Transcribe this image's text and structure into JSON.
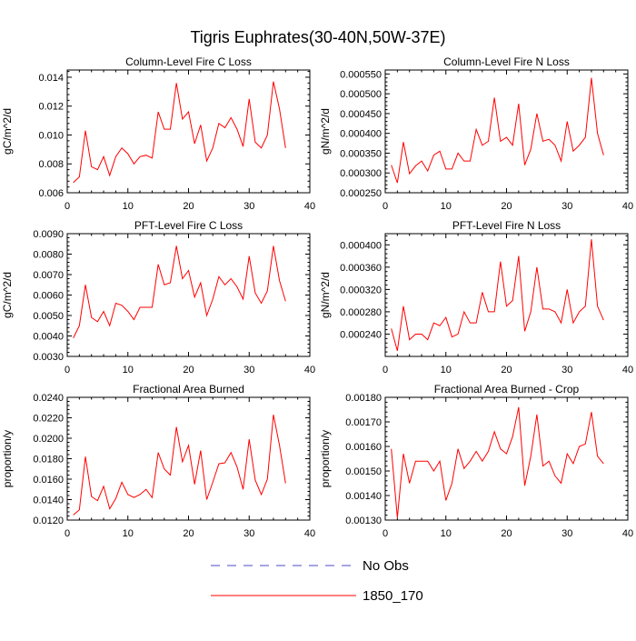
{
  "title": "Tigris Euphrates(30-40N,50W-37E)",
  "legend": [
    {
      "label": "No Obs",
      "style": "dashed",
      "color": "#4b4bc8"
    },
    {
      "label": "1850_170",
      "style": "solid",
      "color": "#ff0000"
    }
  ],
  "chart_data": [
    {
      "type": "line",
      "title": "Column-Level Fire C Loss",
      "ylabel": "gC/m^2/d",
      "xlim": [
        0,
        40
      ],
      "ylim": [
        0.006,
        0.0145
      ],
      "xticks": [
        0,
        10,
        20,
        30,
        40
      ],
      "xtick_labels": [
        "0",
        "10",
        "20",
        "30",
        "40"
      ],
      "yticks": [
        0.006,
        0.008,
        0.01,
        0.012,
        0.014
      ],
      "ytick_labels": [
        "0.006",
        "0.008",
        "0.010",
        "0.012",
        "0.014"
      ],
      "x": [
        1,
        2,
        3,
        4,
        5,
        6,
        7,
        8,
        9,
        10,
        11,
        12,
        13,
        14,
        15,
        16,
        17,
        18,
        19,
        20,
        21,
        22,
        23,
        24,
        25,
        26,
        27,
        28,
        29,
        30,
        31,
        32,
        33,
        34,
        35,
        36
      ],
      "series": [
        {
          "name": "1850_170",
          "color": "#ff0000",
          "values": [
            0.0067,
            0.0071,
            0.0103,
            0.0078,
            0.0076,
            0.0085,
            0.0072,
            0.0085,
            0.0091,
            0.0087,
            0.008,
            0.0085,
            0.0086,
            0.0084,
            0.0116,
            0.0104,
            0.0104,
            0.0136,
            0.0111,
            0.0116,
            0.0094,
            0.0107,
            0.0082,
            0.0091,
            0.0108,
            0.0105,
            0.0112,
            0.0104,
            0.0092,
            0.0125,
            0.0095,
            0.0091,
            0.01,
            0.0137,
            0.0118,
            0.0091
          ]
        }
      ]
    },
    {
      "type": "line",
      "title": "Column-Level Fire N Loss",
      "ylabel": "gN/m^2/d",
      "xlim": [
        0,
        40
      ],
      "ylim": [
        0.00025,
        0.00056
      ],
      "xticks": [
        0,
        10,
        20,
        30,
        40
      ],
      "xtick_labels": [
        "0",
        "10",
        "20",
        "30",
        "40"
      ],
      "yticks": [
        0.00025,
        0.0003,
        0.00035,
        0.0004,
        0.00045,
        0.0005,
        0.00055
      ],
      "ytick_labels": [
        "0.000250",
        "0.000300",
        "0.000350",
        "0.000400",
        "0.000450",
        "0.000500",
        "0.000550"
      ],
      "x": [
        1,
        2,
        3,
        4,
        5,
        6,
        7,
        8,
        9,
        10,
        11,
        12,
        13,
        14,
        15,
        16,
        17,
        18,
        19,
        20,
        21,
        22,
        23,
        24,
        25,
        26,
        27,
        28,
        29,
        30,
        31,
        32,
        33,
        34,
        35,
        36
      ],
      "series": [
        {
          "name": "1850_170",
          "color": "#ff0000",
          "values": [
            0.00032,
            0.000275,
            0.000378,
            0.000298,
            0.000318,
            0.00033,
            0.000305,
            0.000345,
            0.000355,
            0.00031,
            0.00031,
            0.00035,
            0.00033,
            0.00033,
            0.00041,
            0.00037,
            0.00038,
            0.00049,
            0.00038,
            0.00039,
            0.00037,
            0.000475,
            0.00032,
            0.00036,
            0.00045,
            0.00038,
            0.000385,
            0.00037,
            0.00033,
            0.00043,
            0.000355,
            0.00037,
            0.00039,
            0.00054,
            0.0004,
            0.000345
          ]
        }
      ]
    },
    {
      "type": "line",
      "title": "PFT-Level Fire C Loss",
      "ylabel": "gC/m^2/d",
      "xlim": [
        0,
        40
      ],
      "ylim": [
        0.003,
        0.009
      ],
      "xticks": [
        0,
        10,
        20,
        30,
        40
      ],
      "xtick_labels": [
        "0",
        "10",
        "20",
        "30",
        "40"
      ],
      "yticks": [
        0.003,
        0.004,
        0.005,
        0.006,
        0.007,
        0.008,
        0.009
      ],
      "ytick_labels": [
        "0.0030",
        "0.0040",
        "0.0050",
        "0.0060",
        "0.0070",
        "0.0080",
        "0.0090"
      ],
      "x": [
        1,
        2,
        3,
        4,
        5,
        6,
        7,
        8,
        9,
        10,
        11,
        12,
        13,
        14,
        15,
        16,
        17,
        18,
        19,
        20,
        21,
        22,
        23,
        24,
        25,
        26,
        27,
        28,
        29,
        30,
        31,
        32,
        33,
        34,
        35,
        36
      ],
      "series": [
        {
          "name": "1850_170",
          "color": "#ff0000",
          "values": [
            0.0039,
            0.0045,
            0.0065,
            0.0049,
            0.0047,
            0.0052,
            0.0045,
            0.0056,
            0.0055,
            0.0052,
            0.0048,
            0.0054,
            0.0054,
            0.0054,
            0.0075,
            0.0065,
            0.0066,
            0.0084,
            0.0068,
            0.0072,
            0.0059,
            0.0066,
            0.005,
            0.0058,
            0.0069,
            0.0065,
            0.0068,
            0.0064,
            0.0058,
            0.0079,
            0.0061,
            0.0056,
            0.0062,
            0.0084,
            0.0067,
            0.0057
          ]
        }
      ]
    },
    {
      "type": "line",
      "title": "PFT-Level Fire N Loss",
      "ylabel": "gN/m^2/d",
      "xlim": [
        0,
        40
      ],
      "ylim": [
        0.0002,
        0.00042
      ],
      "xticks": [
        0,
        10,
        20,
        30,
        40
      ],
      "xtick_labels": [
        "0",
        "10",
        "20",
        "30",
        "40"
      ],
      "yticks": [
        0.00024,
        0.00028,
        0.00032,
        0.00036,
        0.0004
      ],
      "ytick_labels": [
        "0.000240",
        "0.000280",
        "0.000320",
        "0.000360",
        "0.000400"
      ],
      "x": [
        1,
        2,
        3,
        4,
        5,
        6,
        7,
        8,
        9,
        10,
        11,
        12,
        13,
        14,
        15,
        16,
        17,
        18,
        19,
        20,
        21,
        22,
        23,
        24,
        25,
        26,
        27,
        28,
        29,
        30,
        31,
        32,
        33,
        34,
        35,
        36
      ],
      "series": [
        {
          "name": "1850_170",
          "color": "#ff0000",
          "values": [
            0.00025,
            0.00021,
            0.00029,
            0.00023,
            0.00024,
            0.00024,
            0.00023,
            0.00026,
            0.000255,
            0.00027,
            0.000235,
            0.00024,
            0.00028,
            0.00026,
            0.00026,
            0.000315,
            0.00028,
            0.00028,
            0.00037,
            0.00029,
            0.0003,
            0.00038,
            0.000245,
            0.00028,
            0.00036,
            0.000285,
            0.000285,
            0.00028,
            0.00026,
            0.00032,
            0.00026,
            0.00028,
            0.00029,
            0.00041,
            0.00029,
            0.000265
          ]
        }
      ]
    },
    {
      "type": "line",
      "title": "Fractional Area Burned",
      "ylabel": "proportion/y",
      "xlim": [
        0,
        40
      ],
      "ylim": [
        0.012,
        0.024
      ],
      "xticks": [
        0,
        10,
        20,
        30,
        40
      ],
      "xtick_labels": [
        "0",
        "10",
        "20",
        "30",
        "40"
      ],
      "yticks": [
        0.012,
        0.014,
        0.016,
        0.018,
        0.02,
        0.022,
        0.024
      ],
      "ytick_labels": [
        "0.0120",
        "0.0140",
        "0.0160",
        "0.0180",
        "0.0200",
        "0.0220",
        "0.0240"
      ],
      "x": [
        1,
        2,
        3,
        4,
        5,
        6,
        7,
        8,
        9,
        10,
        11,
        12,
        13,
        14,
        15,
        16,
        17,
        18,
        19,
        20,
        21,
        22,
        23,
        24,
        25,
        26,
        27,
        28,
        29,
        30,
        31,
        32,
        33,
        34,
        35,
        36
      ],
      "series": [
        {
          "name": "1850_170",
          "color": "#ff0000",
          "values": [
            0.0125,
            0.013,
            0.0182,
            0.0143,
            0.0139,
            0.0153,
            0.0131,
            0.0141,
            0.0157,
            0.0145,
            0.0142,
            0.0145,
            0.015,
            0.0142,
            0.0186,
            0.017,
            0.0164,
            0.0211,
            0.0177,
            0.0193,
            0.0155,
            0.0188,
            0.014,
            0.0157,
            0.0175,
            0.0176,
            0.0186,
            0.0172,
            0.015,
            0.0199,
            0.0159,
            0.0145,
            0.016,
            0.0223,
            0.0193,
            0.0156
          ]
        }
      ]
    },
    {
      "type": "line",
      "title": "Fractional Area Burned - Crop",
      "ylabel": "proportion/y",
      "xlim": [
        0,
        40
      ],
      "ylim": [
        0.0013,
        0.0018
      ],
      "xticks": [
        0,
        10,
        20,
        30,
        40
      ],
      "xtick_labels": [
        "0",
        "10",
        "20",
        "30",
        "40"
      ],
      "yticks": [
        0.0013,
        0.0014,
        0.0015,
        0.0016,
        0.0017,
        0.0018
      ],
      "ytick_labels": [
        "0.00130",
        "0.00140",
        "0.00150",
        "0.00160",
        "0.00170",
        "0.00180"
      ],
      "x": [
        1,
        2,
        3,
        4,
        5,
        6,
        7,
        8,
        9,
        10,
        11,
        12,
        13,
        14,
        15,
        16,
        17,
        18,
        19,
        20,
        21,
        22,
        23,
        24,
        25,
        26,
        27,
        28,
        29,
        30,
        31,
        32,
        33,
        34,
        35,
        36
      ],
      "series": [
        {
          "name": "1850_170",
          "color": "#ff0000",
          "values": [
            0.00159,
            0.00131,
            0.00157,
            0.00145,
            0.00154,
            0.00154,
            0.00154,
            0.0015,
            0.00154,
            0.00138,
            0.00145,
            0.00159,
            0.00151,
            0.00154,
            0.00158,
            0.00154,
            0.00158,
            0.00166,
            0.00159,
            0.00157,
            0.00164,
            0.00176,
            0.00144,
            0.00156,
            0.00173,
            0.00152,
            0.00154,
            0.00148,
            0.00145,
            0.00157,
            0.00153,
            0.0016,
            0.00161,
            0.00174,
            0.00156,
            0.00153
          ]
        }
      ]
    }
  ]
}
